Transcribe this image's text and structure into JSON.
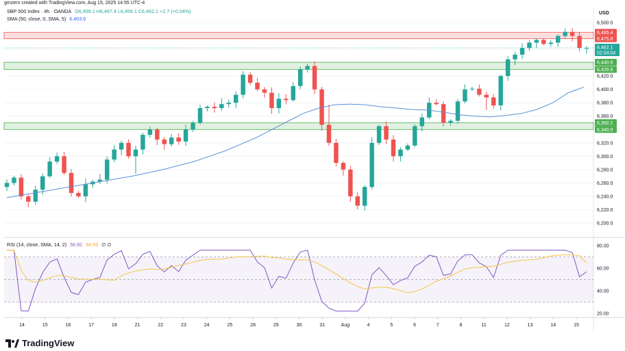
{
  "header": {
    "credit": "gmzern created with TradingView.com, Aug 15, 2025 14:55 UTC-4"
  },
  "legend": {
    "symbol": "SBP 500 Index · 4h · OANDA",
    "ohlc": "O6,459.1 H6,467.4 L6,456.1 C6,462.1 +2.7 (+0.04%)",
    "sma_label": "SMA (50, close, 0, SMA, 5)",
    "sma_value": "6,403.6",
    "rsi_label": "RSI (14, close, SMA, 14, 2)",
    "rsi_value": "56.92",
    "rsi_ma_value": "64.59",
    "rsi_extra": "∅ ∅"
  },
  "price_axis": {
    "currency": "USD",
    "ticks": [
      "6,500.0",
      "6,480.0",
      "6,460.0",
      "6,440.0",
      "6,420.0",
      "6,400.0",
      "6,380.0",
      "6,360.0",
      "6,340.0",
      "6,320.0",
      "6,300.0",
      "6,280.0",
      "6,260.0",
      "6,240.0",
      "6,220.0",
      "6,200.0"
    ],
    "zone_labels": [
      "6,485.4",
      "6,475.8",
      "6,440.6",
      "6,429.9",
      "6,350.2",
      "6,340.0"
    ],
    "last_price": "6,462.1",
    "countdown": "02:04:04"
  },
  "rsi_axis": {
    "ticks": [
      "80.00",
      "60.00",
      "40.00",
      "20.00"
    ]
  },
  "time_axis": {
    "labels": [
      "14",
      "15",
      "16",
      "17",
      "18",
      "21",
      "22",
      "23",
      "24",
      "25",
      "28",
      "29",
      "30",
      "31",
      "Aug",
      "4",
      "5",
      "6",
      "7",
      "8",
      "11",
      "12",
      "13",
      "14",
      "15"
    ]
  },
  "footer": {
    "brand": "TradingView"
  },
  "colors": {
    "up": "#26a69a",
    "down": "#ef5350",
    "sma": "#5b8fd6",
    "rsi": "#7e57c2",
    "rsi_ma": "#f5c542",
    "resistance_zone": "#f8c6c6",
    "support_zone": "#c8e6c9"
  },
  "chart_data": {
    "type": "candlestick",
    "timeframe": "4h",
    "ylim": [
      6200,
      6510
    ],
    "zones": [
      {
        "kind": "resistance",
        "low": 6475.8,
        "high": 6485.4
      },
      {
        "kind": "support",
        "low": 6429.9,
        "high": 6440.6
      },
      {
        "kind": "support",
        "low": 6340.0,
        "high": 6350.2
      }
    ],
    "last": 6462.1,
    "anchor_closes": [
      6260,
      6268,
      6240,
      6232,
      6250,
      6270,
      6292,
      6300,
      6275,
      6245,
      6240,
      6258,
      6262,
      6265,
      6295,
      6310,
      6320,
      6300,
      6310,
      6332,
      6340,
      6325,
      6318,
      6328,
      6322,
      6340,
      6350,
      6372,
      6374,
      6372,
      6378,
      6380,
      6392,
      6422,
      6410,
      6400,
      6395,
      6372,
      6386,
      6384,
      6405,
      6430,
      6435,
      6400,
      6347,
      6320,
      6290,
      6280,
      6240,
      6226,
      6254,
      6320,
      6345,
      6325,
      6300,
      6310,
      6316,
      6345,
      6358,
      6380,
      6378,
      6350,
      6353,
      6382,
      6400,
      6401,
      6392,
      6388,
      6376,
      6420,
      6445,
      6452,
      6462,
      6470,
      6474,
      6468,
      6470,
      6480,
      6486,
      6480,
      6462,
      6462
    ],
    "sma50": [
      6238,
      6242,
      6246,
      6250,
      6254,
      6258,
      6262,
      6266,
      6270,
      6275,
      6280,
      6286,
      6292,
      6300,
      6308,
      6318,
      6328,
      6340,
      6352,
      6364,
      6372,
      6377,
      6378,
      6377,
      6374,
      6372,
      6370,
      6369,
      6366,
      6362,
      6360,
      6359,
      6361,
      6364,
      6370,
      6380,
      6395,
      6403.6
    ],
    "rsi_scale": [
      20,
      80
    ],
    "rsi_bands": [
      30,
      70
    ],
    "rsi_last": 56.92,
    "rsi_ma_last": 64.59
  }
}
